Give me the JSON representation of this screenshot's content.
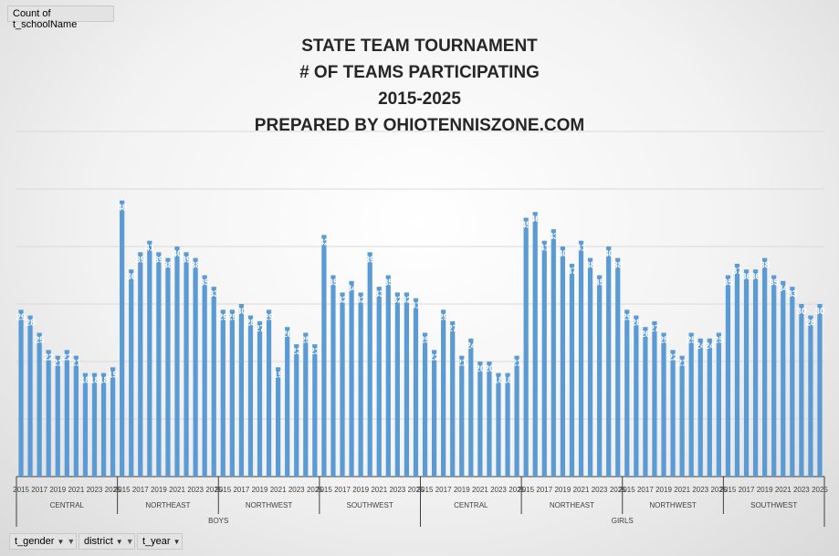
{
  "pivot": {
    "value_field": "Count of t_schoolName",
    "filters": [
      {
        "label": "t_gender",
        "icon": "filter-funnel-icon"
      },
      {
        "label": "district",
        "icon": "filter-funnel-icon"
      },
      {
        "label": "t_year",
        "icon": "dropdown-arrow-icon"
      }
    ]
  },
  "colors": {
    "bar": "#5b9bd5",
    "label": "#ffffff",
    "grid": "#d9d9d9",
    "axis": "#404040"
  },
  "chart_data": {
    "type": "bar",
    "title": [
      "STATE TEAM TOURNAMENT",
      "# OF TEAMS PARTICIPATING",
      "2015-2025",
      "PREPARED BY OHIOTENNISZONE.COM"
    ],
    "xlabel": "",
    "ylabel": "",
    "ylim": [
      0,
      60
    ],
    "grid": true,
    "legend": "none",
    "data_labels": true,
    "groups": [
      {
        "gender": "BOYS",
        "districts": [
          {
            "district": "CENTRAL",
            "years": [
              "2015",
              "2016",
              "2017",
              "2018",
              "2019",
              "2020",
              "2021",
              "2022",
              "2023",
              "2024",
              "2025"
            ],
            "values": [
              29,
              28,
              25,
              22,
              21,
              22,
              21,
              18,
              18,
              18,
              19
            ]
          },
          {
            "district": "NORTHEAST",
            "years": [
              "2015",
              "2016",
              "2017",
              "2018",
              "2019",
              "2020",
              "2021",
              "2022",
              "2023",
              "2024",
              "2025"
            ],
            "values": [
              48,
              36,
              39,
              41,
              39,
              38,
              40,
              39,
              38,
              35,
              33
            ]
          },
          {
            "district": "NORTHWEST",
            "years": [
              "2015",
              "2016",
              "2017",
              "2018",
              "2019",
              "2020",
              "2021",
              "2022",
              "2023",
              "2024",
              "2025"
            ],
            "values": [
              29,
              29,
              30,
              28,
              27,
              29,
              19,
              26,
              23,
              25,
              23
            ]
          },
          {
            "district": "SOUTHWEST",
            "years": [
              "2015",
              "2016",
              "2017",
              "2018",
              "2019",
              "2020",
              "2021",
              "2022",
              "2023",
              "2024",
              "2025"
            ],
            "values": [
              42,
              35,
              32,
              34,
              32,
              39,
              33,
              35,
              32,
              32,
              31
            ]
          }
        ]
      },
      {
        "gender": "GIRLS",
        "districts": [
          {
            "district": "CENTRAL",
            "years": [
              "2015",
              "2016",
              "2017",
              "2018",
              "2019",
              "2020",
              "2021",
              "2022",
              "2023",
              "2024",
              "2025"
            ],
            "values": [
              25,
              22,
              29,
              27,
              21,
              24,
              20,
              20,
              18,
              18,
              21
            ]
          },
          {
            "district": "NORTHEAST",
            "years": [
              "2015",
              "2016",
              "2017",
              "2018",
              "2019",
              "2020",
              "2021",
              "2022",
              "2023",
              "2024",
              "2025"
            ],
            "values": [
              45,
              46,
              41,
              43,
              40,
              37,
              41,
              38,
              35,
              40,
              38
            ]
          },
          {
            "district": "NORTHWEST",
            "years": [
              "2015",
              "2016",
              "2017",
              "2018",
              "2019",
              "2020",
              "2021",
              "2022",
              "2023",
              "2024",
              "2025"
            ],
            "values": [
              29,
              28,
              26,
              27,
              25,
              22,
              21,
              25,
              24,
              24,
              25
            ]
          },
          {
            "district": "SOUTHWEST",
            "years": [
              "2015",
              "2016",
              "2017",
              "2018",
              "2019",
              "2020",
              "2021",
              "2022",
              "2023",
              "2024",
              "2025"
            ],
            "values": [
              35,
              37,
              36,
              36,
              38,
              35,
              34,
              33,
              30,
              28,
              30
            ]
          }
        ]
      }
    ]
  }
}
